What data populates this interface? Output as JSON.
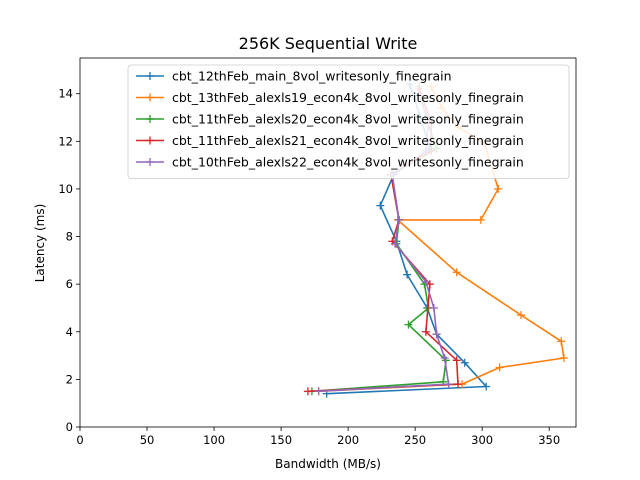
{
  "chart_data": {
    "type": "line",
    "title": "256K  Sequential Write",
    "xlabel": "Bandwidth (MB/s)",
    "ylabel": "Latency (ms)",
    "xlim": [
      0,
      370
    ],
    "ylim": [
      0,
      15.5
    ],
    "xticks": [
      0,
      50,
      100,
      150,
      200,
      250,
      300,
      350
    ],
    "yticks": [
      0,
      2,
      4,
      6,
      8,
      10,
      12,
      14
    ],
    "grid": false,
    "legend": "top-right",
    "marker": "+",
    "series": [
      {
        "name": "cbt_12thFeb_main_8vol_writesonly_finegrain",
        "color": "#1f77b4",
        "points": [
          [
            184,
            1.4
          ],
          [
            303,
            1.7
          ],
          [
            287,
            2.7
          ],
          [
            266,
            3.9
          ],
          [
            259,
            5.0
          ],
          [
            244,
            6.4
          ],
          [
            236,
            7.8
          ],
          [
            224,
            9.3
          ],
          [
            234,
            10.6
          ],
          [
            261,
            11.7
          ],
          [
            254,
            13.0
          ],
          [
            246,
            14.4
          ]
        ]
      },
      {
        "name": "cbt_13thFeb_alexls19_econ4k_8vol_writesonly_finegrain",
        "color": "#ff7f0e",
        "points": [
          [
            178,
            1.5
          ],
          [
            285,
            1.8
          ],
          [
            313,
            2.5
          ],
          [
            361,
            2.9
          ],
          [
            359,
            3.6
          ],
          [
            329,
            4.7
          ],
          [
            281,
            6.5
          ],
          [
            237,
            8.7
          ],
          [
            299,
            8.7
          ],
          [
            312,
            10.0
          ],
          [
            302,
            11.9
          ],
          [
            282,
            12.6
          ],
          [
            270,
            13.4
          ],
          [
            262,
            14.3
          ]
        ]
      },
      {
        "name": "cbt_11thFeb_alexls20_econ4k_8vol_writesonly_finegrain",
        "color": "#2ca02c",
        "points": [
          [
            173,
            1.5
          ],
          [
            271,
            1.9
          ],
          [
            273,
            2.8
          ],
          [
            245,
            4.3
          ],
          [
            260,
            5.0
          ],
          [
            257,
            6.0
          ],
          [
            236,
            7.7
          ],
          [
            238,
            8.7
          ],
          [
            232,
            10.6
          ],
          [
            266,
            11.7
          ],
          [
            258,
            13.0
          ],
          [
            253,
            14.3
          ]
        ]
      },
      {
        "name": "cbt_11thFeb_alexls21_econ4k_8vol_writesonly_finegrain",
        "color": "#d62728",
        "points": [
          [
            170,
            1.5
          ],
          [
            282,
            1.8
          ],
          [
            281,
            2.8
          ],
          [
            258,
            4.0
          ],
          [
            261,
            6.0
          ],
          [
            233,
            7.8
          ],
          [
            238,
            8.7
          ],
          [
            232,
            10.6
          ],
          [
            262,
            11.6
          ],
          [
            262,
            12.8
          ],
          [
            253,
            14.2
          ]
        ]
      },
      {
        "name": "cbt_10thFeb_alexls22_econ4k_8vol_writesonly_finegrain",
        "color": "#9467bd",
        "points": [
          [
            178,
            1.5
          ],
          [
            275,
            1.8
          ],
          [
            272,
            2.9
          ],
          [
            266,
            3.9
          ],
          [
            264,
            5.0
          ],
          [
            258,
            6.1
          ],
          [
            235,
            7.7
          ],
          [
            238,
            8.7
          ],
          [
            233,
            10.6
          ],
          [
            258,
            11.6
          ],
          [
            260,
            12.9
          ],
          [
            252,
            14.0
          ]
        ]
      }
    ]
  }
}
